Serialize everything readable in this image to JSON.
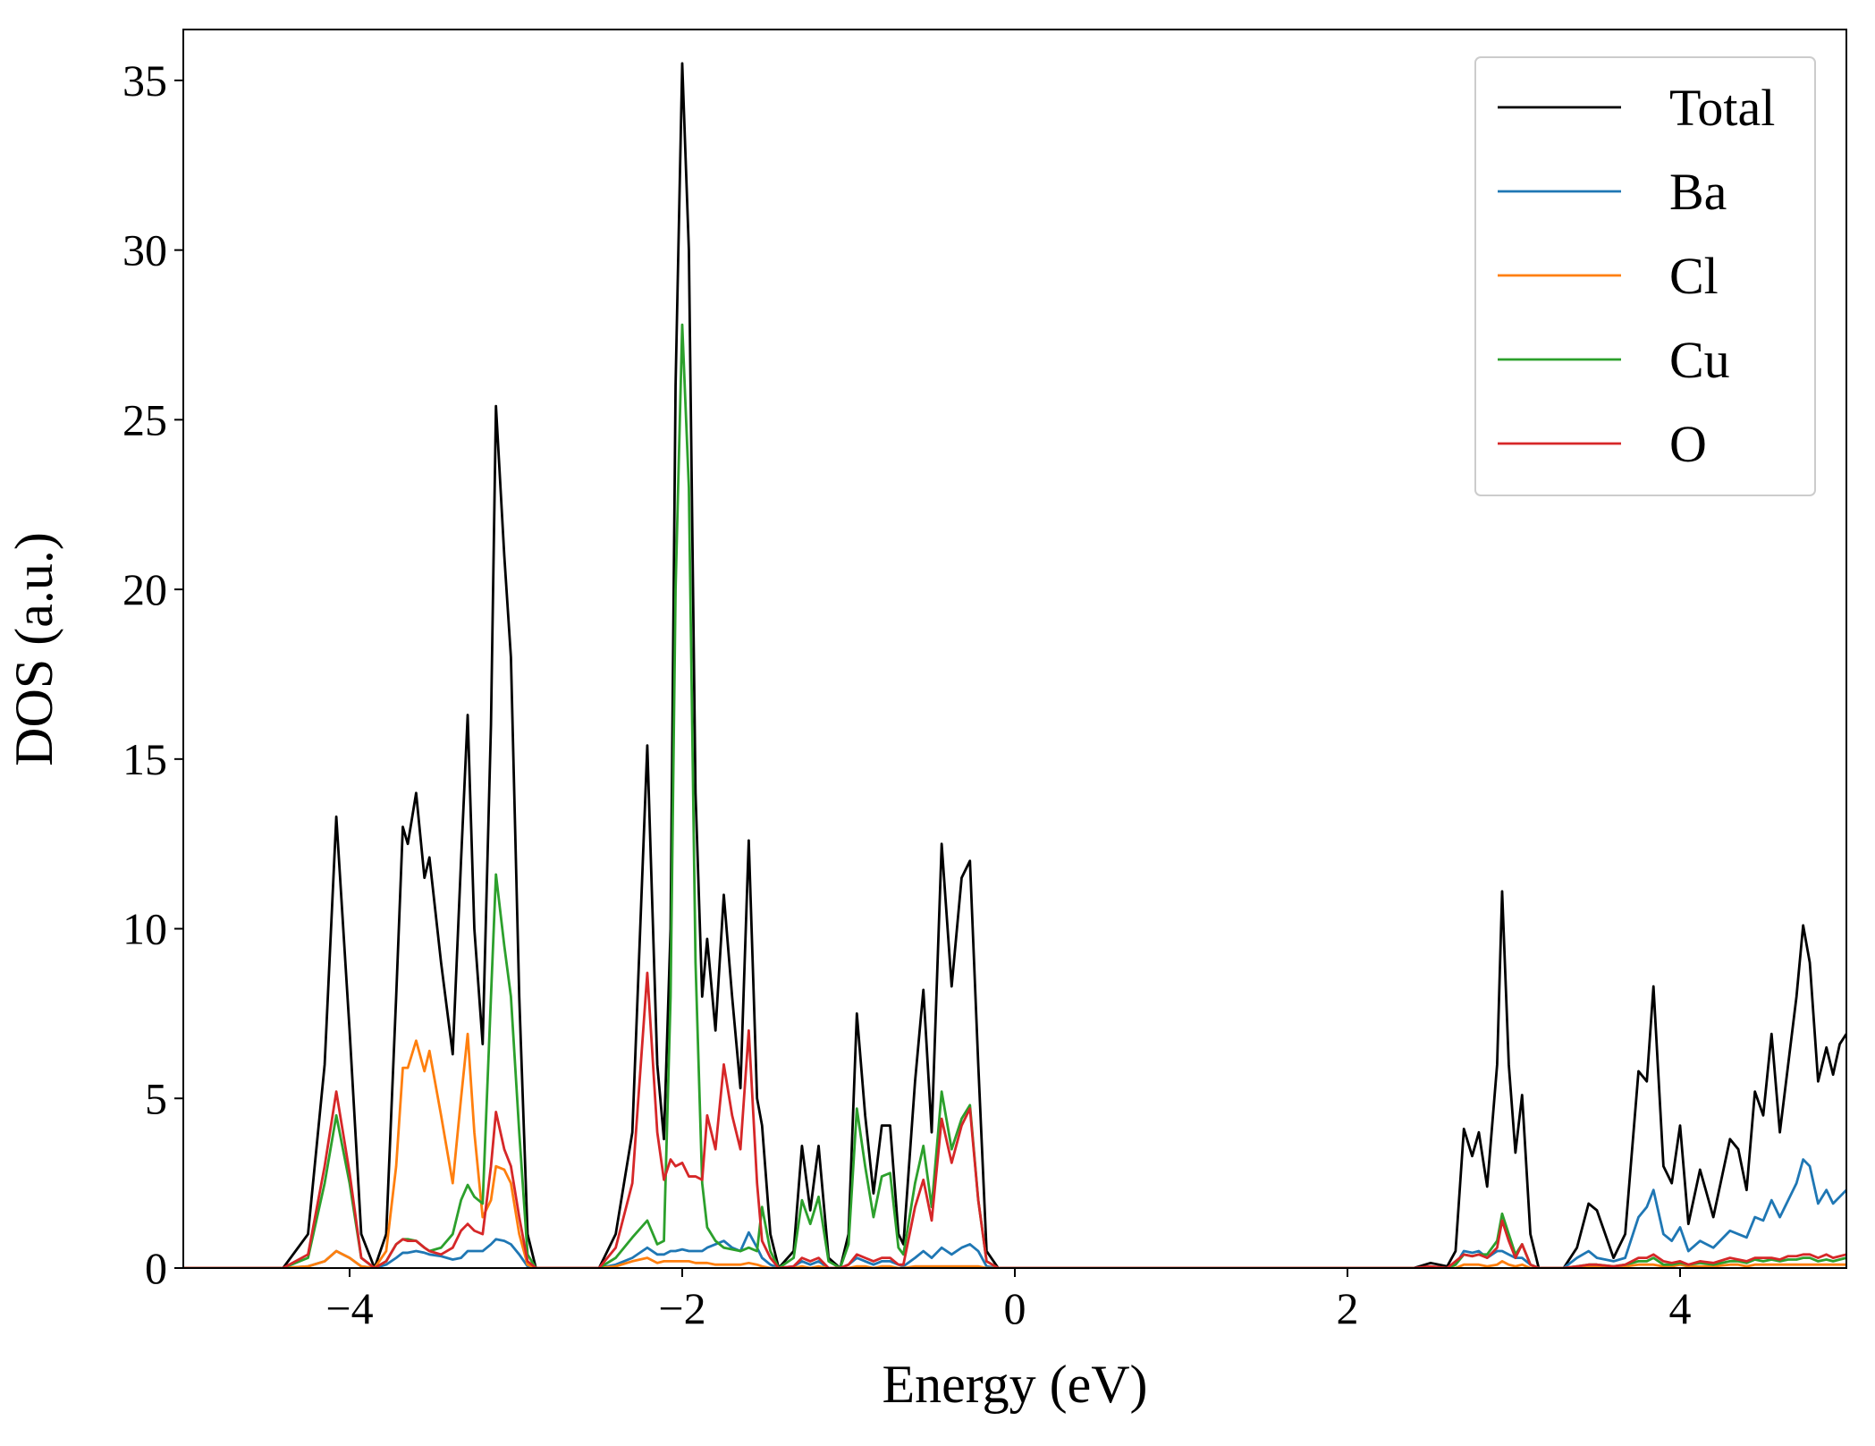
{
  "chart_data": {
    "type": "line",
    "xlabel": "Energy (eV)",
    "ylabel": "DOS (a.u.)",
    "x": [
      -5,
      -4.4,
      -4.25,
      -4.15,
      -4.08,
      -4.0,
      -3.93,
      -3.85,
      -3.78,
      -3.72,
      -3.68,
      -3.65,
      -3.6,
      -3.55,
      -3.52,
      -3.45,
      -3.38,
      -3.33,
      -3.29,
      -3.25,
      -3.2,
      -3.15,
      -3.12,
      -3.07,
      -3.03,
      -2.98,
      -2.93,
      -2.88,
      -2.5,
      -2.4,
      -2.3,
      -2.21,
      -2.15,
      -2.11,
      -2.07,
      -2.04,
      -2.0,
      -1.96,
      -1.92,
      -1.88,
      -1.85,
      -1.8,
      -1.75,
      -1.7,
      -1.65,
      -1.6,
      -1.55,
      -1.52,
      -1.47,
      -1.42,
      -1.33,
      -1.28,
      -1.23,
      -1.18,
      -1.12,
      -1.05,
      -1.0,
      -0.95,
      -0.9,
      -0.85,
      -0.8,
      -0.75,
      -0.7,
      -0.67,
      -0.6,
      -0.55,
      -0.5,
      -0.44,
      -0.38,
      -0.32,
      -0.27,
      -0.22,
      -0.17,
      -0.1,
      2.4,
      2.5,
      2.6,
      2.65,
      2.7,
      2.75,
      2.79,
      2.84,
      2.9,
      2.93,
      2.97,
      3.01,
      3.05,
      3.1,
      3.15,
      3.3,
      3.38,
      3.45,
      3.5,
      3.6,
      3.67,
      3.75,
      3.8,
      3.84,
      3.9,
      3.95,
      4.0,
      4.05,
      4.12,
      4.2,
      4.3,
      4.35,
      4.4,
      4.45,
      4.5,
      4.55,
      4.6,
      4.65,
      4.7,
      4.74,
      4.78,
      4.83,
      4.88,
      4.92,
      4.96,
      5.0
    ],
    "series": [
      {
        "name": "Total",
        "color": "#000000",
        "values": [
          0,
          0,
          1,
          6,
          13.3,
          7,
          1,
          0,
          1,
          8,
          13,
          12.5,
          14,
          11.5,
          12.1,
          9,
          6.3,
          12,
          16.3,
          10,
          6.6,
          16,
          25.4,
          21,
          18,
          8,
          1,
          0,
          0,
          1,
          4,
          15.4,
          6,
          3.8,
          10,
          26,
          35.5,
          30,
          14,
          8,
          9.7,
          7,
          11,
          8,
          5.3,
          12.6,
          5,
          4.2,
          1,
          0,
          0.5,
          3.6,
          1.7,
          3.6,
          0.3,
          0,
          1,
          7.5,
          4.5,
          2.2,
          4.2,
          4.2,
          1,
          0.7,
          5.5,
          8.2,
          4,
          12.5,
          8.3,
          11.5,
          12,
          6,
          0.5,
          0,
          0,
          0.15,
          0.05,
          0.5,
          4.1,
          3.3,
          4,
          2.4,
          6,
          11.1,
          6,
          3.4,
          5.1,
          1,
          0,
          0,
          0.6,
          1.9,
          1.7,
          0.3,
          1,
          5.8,
          5.5,
          8.3,
          3,
          2.5,
          4.2,
          1.3,
          2.9,
          1.5,
          3.8,
          3.5,
          2.3,
          5.2,
          4.5,
          6.9,
          4,
          6,
          8,
          10.1,
          9,
          5.5,
          6.5,
          5.7,
          6.6,
          6.9
        ]
      },
      {
        "name": "Ba",
        "color": "#1f77b4",
        "values": [
          0,
          0,
          0.05,
          0.2,
          0.5,
          0.3,
          0.05,
          0,
          0.1,
          0.3,
          0.45,
          0.45,
          0.5,
          0.45,
          0.4,
          0.35,
          0.25,
          0.3,
          0.5,
          0.5,
          0.5,
          0.7,
          0.85,
          0.8,
          0.7,
          0.4,
          0.05,
          0,
          0,
          0.1,
          0.3,
          0.6,
          0.4,
          0.4,
          0.5,
          0.5,
          0.55,
          0.5,
          0.5,
          0.5,
          0.6,
          0.7,
          0.8,
          0.6,
          0.5,
          1.05,
          0.6,
          0.3,
          0.1,
          0,
          0.05,
          0.2,
          0.1,
          0.2,
          0,
          0,
          0.1,
          0.3,
          0.2,
          0.1,
          0.2,
          0.2,
          0.1,
          0.05,
          0.3,
          0.5,
          0.3,
          0.6,
          0.4,
          0.6,
          0.7,
          0.5,
          0.05,
          0,
          0,
          0.02,
          0,
          0.1,
          0.5,
          0.45,
          0.5,
          0.3,
          0.5,
          0.5,
          0.4,
          0.3,
          0.3,
          0.1,
          0,
          0,
          0.3,
          0.5,
          0.3,
          0.2,
          0.3,
          1.5,
          1.8,
          2.3,
          1,
          0.8,
          1.2,
          0.5,
          0.8,
          0.6,
          1.1,
          1,
          0.9,
          1.5,
          1.4,
          2,
          1.5,
          2,
          2.5,
          3.2,
          3,
          1.9,
          2.3,
          1.9,
          2.1,
          2.3
        ]
      },
      {
        "name": "Cl",
        "color": "#ff7f0e",
        "values": [
          0,
          0,
          0.05,
          0.2,
          0.5,
          0.3,
          0.05,
          0,
          0.5,
          3,
          5.9,
          5.9,
          6.7,
          5.8,
          6.4,
          4.5,
          2.5,
          5,
          6.9,
          4,
          1.5,
          2,
          3,
          2.9,
          2.5,
          1,
          0.1,
          0,
          0,
          0.05,
          0.2,
          0.3,
          0.15,
          0.2,
          0.2,
          0.2,
          0.2,
          0.2,
          0.15,
          0.15,
          0.15,
          0.1,
          0.1,
          0.1,
          0.1,
          0.15,
          0.1,
          0.05,
          0,
          0,
          0,
          0.05,
          0,
          0.05,
          0,
          0,
          0,
          0.05,
          0.05,
          0,
          0.05,
          0.05,
          0,
          0,
          0.05,
          0.05,
          0.05,
          0.05,
          0.05,
          0.05,
          0.05,
          0.05,
          0,
          0,
          0,
          0,
          0,
          0,
          0.1,
          0.1,
          0.1,
          0.05,
          0.1,
          0.2,
          0.1,
          0.05,
          0.1,
          0,
          0,
          0,
          0,
          0.05,
          0.05,
          0,
          0.05,
          0.1,
          0.1,
          0.1,
          0.05,
          0.05,
          0.1,
          0.05,
          0.05,
          0.05,
          0.1,
          0.1,
          0.05,
          0.1,
          0.1,
          0.1,
          0.1,
          0.1,
          0.1,
          0.1,
          0.1,
          0.1,
          0.1,
          0.1,
          0.1,
          0.1
        ]
      },
      {
        "name": "Cu",
        "color": "#2ca02c",
        "values": [
          0,
          0,
          0.3,
          2.5,
          4.5,
          2.5,
          0.3,
          0,
          0.2,
          0.7,
          0.85,
          0.85,
          0.8,
          0.6,
          0.5,
          0.6,
          1,
          2,
          2.45,
          2.1,
          1.9,
          8,
          11.6,
          9.5,
          8,
          4,
          0.4,
          0,
          0,
          0.3,
          0.9,
          1.4,
          0.7,
          0.8,
          8,
          20,
          27.8,
          23,
          9,
          2.5,
          1.2,
          0.8,
          0.6,
          0.55,
          0.5,
          0.6,
          0.5,
          1.8,
          0.5,
          0,
          0.3,
          2,
          1.3,
          2.1,
          0.2,
          0,
          0.7,
          4.7,
          3,
          1.5,
          2.7,
          2.8,
          0.6,
          0.4,
          2.5,
          3.6,
          1.8,
          5.2,
          3.5,
          4.4,
          4.8,
          2,
          0.2,
          0,
          0,
          0.03,
          0,
          0.1,
          0.4,
          0.35,
          0.4,
          0.4,
          0.8,
          1.6,
          1,
          0.4,
          0.7,
          0.1,
          0,
          0,
          0.05,
          0.1,
          0.1,
          0.05,
          0.1,
          0.2,
          0.2,
          0.3,
          0.1,
          0.1,
          0.15,
          0.1,
          0.15,
          0.1,
          0.2,
          0.2,
          0.15,
          0.25,
          0.2,
          0.25,
          0.2,
          0.25,
          0.25,
          0.3,
          0.3,
          0.2,
          0.25,
          0.2,
          0.25,
          0.3
        ]
      },
      {
        "name": "O",
        "color": "#d62728",
        "values": [
          0,
          0,
          0.4,
          3,
          5.2,
          2.8,
          0.3,
          0,
          0.2,
          0.7,
          0.85,
          0.8,
          0.8,
          0.6,
          0.5,
          0.4,
          0.6,
          1.1,
          1.3,
          1.1,
          1,
          3,
          4.6,
          3.5,
          3,
          1.5,
          0.2,
          0,
          0,
          0.6,
          2.5,
          8.7,
          4,
          2.6,
          3.2,
          3,
          3.1,
          2.7,
          2.7,
          2.6,
          4.5,
          3.5,
          6,
          4.5,
          3.5,
          7,
          2.5,
          0.8,
          0.3,
          0,
          0.05,
          0.3,
          0.2,
          0.3,
          0,
          0,
          0.1,
          0.4,
          0.3,
          0.2,
          0.3,
          0.3,
          0.1,
          0.1,
          1.8,
          2.6,
          1.4,
          4.4,
          3.1,
          4.2,
          4.7,
          2,
          0.2,
          0,
          0,
          0.05,
          0,
          0.2,
          0.4,
          0.35,
          0.4,
          0.3,
          0.6,
          1.4,
          0.8,
          0.3,
          0.7,
          0.1,
          0,
          0,
          0.05,
          0.1,
          0.1,
          0.05,
          0.1,
          0.3,
          0.3,
          0.4,
          0.2,
          0.15,
          0.2,
          0.1,
          0.2,
          0.15,
          0.3,
          0.25,
          0.2,
          0.3,
          0.3,
          0.3,
          0.25,
          0.35,
          0.35,
          0.4,
          0.4,
          0.3,
          0.4,
          0.3,
          0.35,
          0.4
        ]
      }
    ],
    "xlim": [
      -5,
      5
    ],
    "ylim": [
      0,
      36.5
    ],
    "xticks": [
      {
        "value": -4,
        "label": "−4"
      },
      {
        "value": -2,
        "label": "−2"
      },
      0,
      2,
      4
    ],
    "yticks": [
      0,
      5,
      10,
      15,
      20,
      25,
      30,
      35
    ],
    "grid": false,
    "legend": "upper right"
  }
}
